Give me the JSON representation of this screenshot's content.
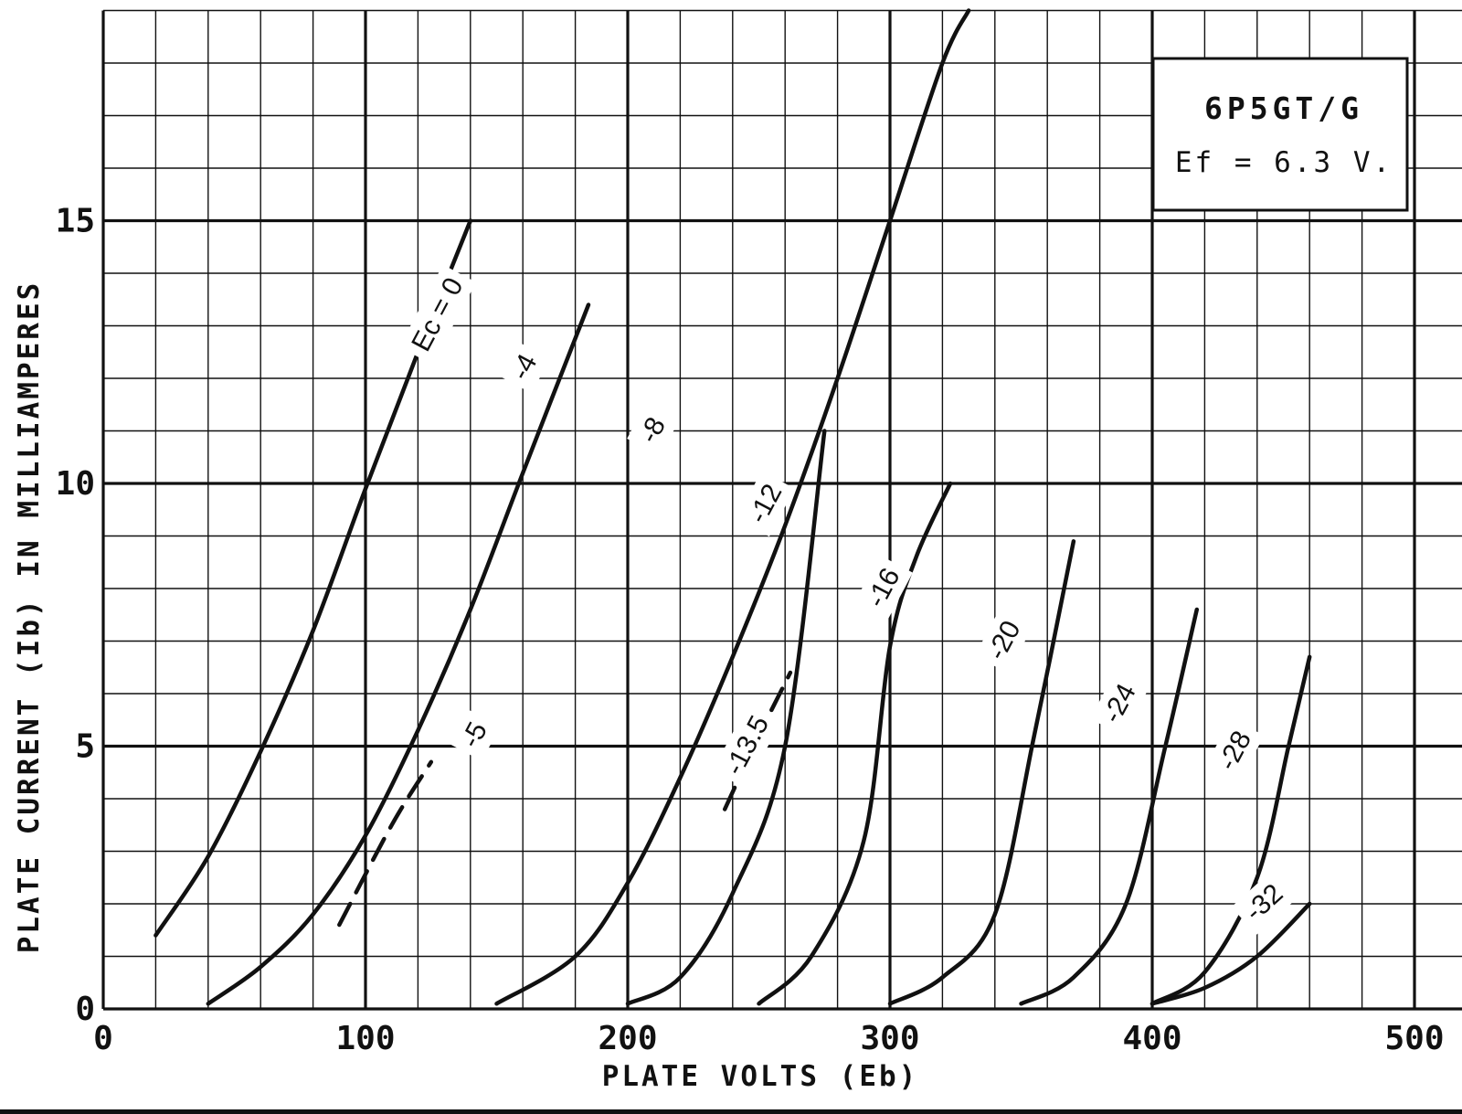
{
  "chart_data": {
    "type": "line",
    "title": "6P5GT/G",
    "subtitle": "Ef = 6.3 V.",
    "xlabel": "PLATE VOLTS (Eb)",
    "ylabel": "PLATE CURRENT (Ib) IN MILLIAMPERES",
    "xlim": [
      0,
      510
    ],
    "ylim": [
      0,
      19
    ],
    "xticks": [
      0,
      100,
      200,
      300,
      400,
      500
    ],
    "yticks": [
      0,
      5,
      10,
      15
    ],
    "grid": true,
    "series": [
      {
        "name": "Ec = 0",
        "style": "solid",
        "x": [
          20,
          40,
          60,
          80,
          100,
          120,
          140
        ],
        "y": [
          1.4,
          2.9,
          4.9,
          7.2,
          9.9,
          12.5,
          15.0
        ]
      },
      {
        "name": "-4",
        "style": "solid",
        "x": [
          40,
          60,
          80,
          100,
          120,
          140,
          160,
          185
        ],
        "y": [
          0.1,
          0.8,
          1.8,
          3.3,
          5.3,
          7.6,
          10.2,
          13.4
        ]
      },
      {
        "name": "-5",
        "style": "dashed",
        "x": [
          90,
          110,
          125
        ],
        "y": [
          1.6,
          3.5,
          4.7
        ]
      },
      {
        "name": "-8",
        "style": "solid",
        "x": [
          150,
          180,
          200,
          220,
          240,
          260,
          280,
          300,
          320,
          330
        ],
        "y": [
          0.1,
          1.0,
          2.4,
          4.4,
          6.7,
          9.2,
          12.0,
          15.0,
          18.0,
          19.0
        ]
      },
      {
        "name": "-12",
        "style": "solid",
        "x": [
          200,
          220,
          240,
          260,
          275
        ],
        "y": [
          0.1,
          0.6,
          2.2,
          5.0,
          11.0
        ]
      },
      {
        "name": "-13.5",
        "style": "dashed",
        "x": [
          237,
          250,
          262
        ],
        "y": [
          3.8,
          5.2,
          6.4
        ]
      },
      {
        "name": "-16",
        "style": "solid",
        "x": [
          250,
          270,
          290,
          300,
          310,
          323
        ],
        "y": [
          0.1,
          1.0,
          3.2,
          6.9,
          8.6,
          10.0
        ]
      },
      {
        "name": "-20",
        "style": "solid",
        "x": [
          300,
          320,
          340,
          355,
          370
        ],
        "y": [
          0.1,
          0.6,
          1.8,
          5.2,
          8.9
        ]
      },
      {
        "name": "-24",
        "style": "solid",
        "x": [
          350,
          370,
          390,
          405,
          417
        ],
        "y": [
          0.1,
          0.6,
          2.0,
          5.0,
          7.6
        ]
      },
      {
        "name": "-28",
        "style": "solid",
        "x": [
          400,
          420,
          440,
          452,
          460
        ],
        "y": [
          0.1,
          0.7,
          2.5,
          5.0,
          6.7
        ]
      },
      {
        "name": "-32",
        "style": "solid",
        "x": [
          400,
          420,
          440,
          460
        ],
        "y": [
          0.1,
          0.4,
          1.0,
          2.0
        ]
      }
    ],
    "labels": [
      {
        "text": "Ec = 0",
        "x": 128,
        "y": 13.2,
        "rotate": -62
      },
      {
        "text": "-4",
        "x": 161,
        "y": 12.2,
        "rotate": -62
      },
      {
        "text": "-8",
        "x": 210,
        "y": 11.0,
        "rotate": -62
      },
      {
        "text": "-12",
        "x": 253,
        "y": 9.6,
        "rotate": -62
      },
      {
        "text": "-16",
        "x": 298,
        "y": 8.0,
        "rotate": -62
      },
      {
        "text": "-20",
        "x": 344,
        "y": 7.0,
        "rotate": -62
      },
      {
        "text": "-24",
        "x": 388,
        "y": 5.8,
        "rotate": -62
      },
      {
        "text": "-28",
        "x": 432,
        "y": 4.9,
        "rotate": -62
      },
      {
        "text": "-32",
        "x": 443,
        "y": 2.0,
        "rotate": -42
      },
      {
        "text": "-5",
        "x": 142,
        "y": 5.2,
        "rotate": -62
      },
      {
        "text": "-13.5",
        "x": 246,
        "y": 5.0,
        "rotate": -62
      }
    ]
  }
}
